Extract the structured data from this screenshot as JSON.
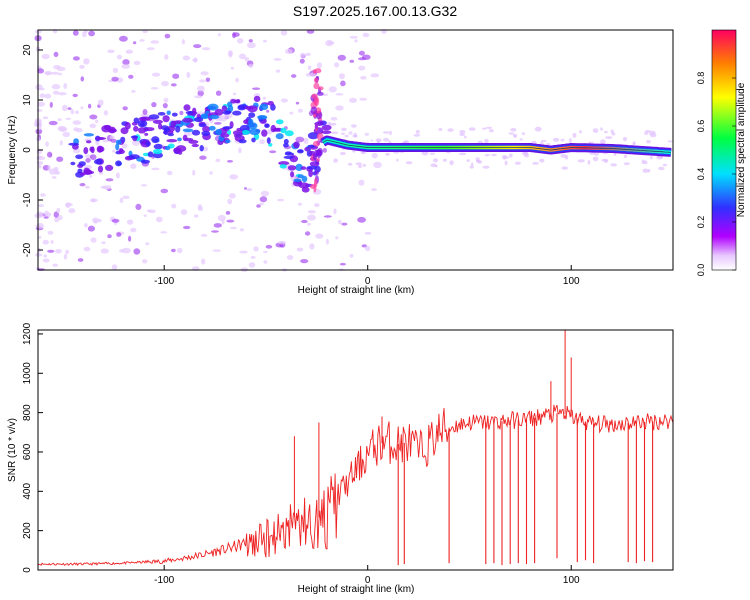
{
  "figure_title": "S197.2025.167.00.13.G32",
  "chart_data": [
    {
      "type": "heatmap",
      "title": "S197.2025.167.00.13.G32",
      "xlabel": "Height of straight line (km)",
      "ylabel": "Frequency (Hz)",
      "xlim": [
        -162,
        150
      ],
      "ylim": [
        -24,
        24
      ],
      "x_ticks": [
        -100,
        0,
        100
      ],
      "y_ticks": [
        -20,
        -10,
        0,
        10,
        20
      ],
      "grid": false,
      "colorbar": {
        "label": "Normalized spectral amplitude",
        "range": [
          0,
          1
        ],
        "ticks": [
          0.0,
          0.2,
          0.4,
          0.6,
          0.8
        ],
        "colormap": [
          "#ffffff",
          "#b000ff",
          "#3030ff",
          "#00e0ff",
          "#00ff00",
          "#ffff00",
          "#ff8000",
          "#ff0060"
        ]
      },
      "ridge": {
        "x": [
          -140,
          -120,
          -100,
          -80,
          -60,
          -50,
          -40,
          -30,
          -24,
          -20,
          -10,
          0,
          20,
          40,
          60,
          80,
          90,
          100,
          120,
          150
        ],
        "frequency": [
          -1,
          1,
          3,
          5,
          6,
          7,
          0,
          -4,
          1,
          2,
          1,
          0.5,
          0.5,
          0.5,
          0.5,
          0.5,
          0,
          0.5,
          0.3,
          -0.5
        ]
      }
    },
    {
      "type": "line",
      "xlabel": "Height of straight line (km)",
      "ylabel": "SNR (10 * v/v)",
      "xlim": [
        -162,
        150
      ],
      "ylim": [
        0,
        1220
      ],
      "x_ticks": [
        -100,
        0,
        100
      ],
      "y_ticks": [
        0,
        200,
        400,
        600,
        800,
        1000,
        1200
      ],
      "grid": false,
      "line_color": "#ee2222",
      "series": [
        {
          "x": [
            -160,
            -140,
            -120,
            -100,
            -90,
            -80,
            -70,
            -60,
            -50,
            -40,
            -35,
            -30,
            -25,
            -20,
            -15,
            -10,
            -5,
            0,
            5,
            10,
            15,
            20,
            25,
            30,
            35,
            40,
            45,
            50,
            60,
            70,
            80,
            90,
            95,
            100,
            105,
            110,
            120,
            130,
            140,
            150
          ],
          "values": [
            30,
            30,
            35,
            45,
            60,
            80,
            105,
            135,
            175,
            240,
            280,
            260,
            260,
            300,
            380,
            440,
            520,
            590,
            640,
            650,
            640,
            650,
            600,
            640,
            700,
            720,
            740,
            750,
            750,
            760,
            770,
            790,
            800,
            780,
            760,
            745,
            740,
            750,
            755,
            760
          ]
        }
      ],
      "annotations": {
        "spike_peaks": [
          {
            "x": -36,
            "y": 680
          },
          {
            "x": -24,
            "y": 750
          },
          {
            "x": 7,
            "y": 780
          },
          {
            "x": 90,
            "y": 960
          },
          {
            "x": 97,
            "y": 1220
          },
          {
            "x": 100,
            "y": 1080
          }
        ],
        "dropouts": [
          {
            "x": 15,
            "y": 25
          },
          {
            "x": 18,
            "y": 30
          },
          {
            "x": 40,
            "y": 35
          },
          {
            "x": 58,
            "y": 30
          },
          {
            "x": 62,
            "y": 35
          },
          {
            "x": 66,
            "y": 25
          },
          {
            "x": 70,
            "y": 30
          },
          {
            "x": 74,
            "y": 35
          },
          {
            "x": 78,
            "y": 30
          },
          {
            "x": 82,
            "y": 35
          },
          {
            "x": 93,
            "y": 60
          },
          {
            "x": 103,
            "y": 40
          },
          {
            "x": 107,
            "y": 50
          },
          {
            "x": 111,
            "y": 35
          },
          {
            "x": 128,
            "y": 40
          },
          {
            "x": 132,
            "y": 35
          },
          {
            "x": 136,
            "y": 45
          },
          {
            "x": 140,
            "y": 40
          }
        ]
      }
    }
  ]
}
